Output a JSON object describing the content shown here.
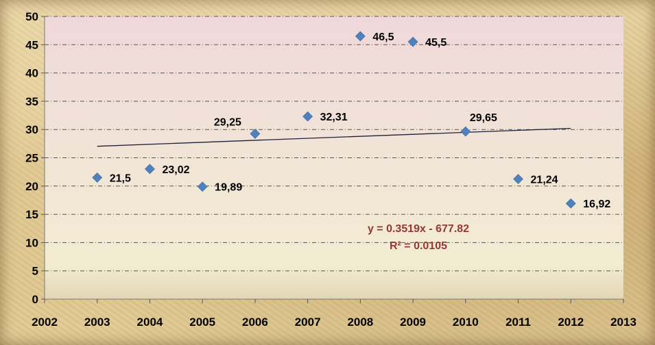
{
  "chart_data": {
    "type": "scatter",
    "x": [
      2003,
      2004,
      2005,
      2006,
      2007,
      2008,
      2009,
      2010,
      2011,
      2012
    ],
    "y": [
      21.5,
      23.02,
      19.89,
      29.25,
      32.31,
      46.5,
      45.5,
      29.65,
      21.24,
      16.92
    ],
    "data_labels": [
      "21,5",
      "23,02",
      "19,89",
      "29,25",
      "32,31",
      "46,5",
      "45,5",
      "29,65",
      "21,24",
      "16,92"
    ],
    "xlim": [
      2002,
      2013
    ],
    "ylim": [
      0,
      50
    ],
    "x_ticks": [
      "2002",
      "2003",
      "2004",
      "2005",
      "2006",
      "2007",
      "2008",
      "2009",
      "2010",
      "2011",
      "2012",
      "2013"
    ],
    "y_ticks": [
      "0",
      "5",
      "10",
      "15",
      "20",
      "25",
      "30",
      "35",
      "40",
      "45",
      "50"
    ],
    "grid": "horizontal dash-dot",
    "trendline": {
      "type": "linear",
      "slope": 0.3519,
      "intercept": -677.82,
      "x_range": [
        2003,
        2012
      ],
      "equation": "y = 0.3519x - 677.82",
      "r_squared": "R² = 0.0105"
    },
    "colors": {
      "marker": "#4f81bd",
      "trendline": "#1f1f3a",
      "equation_text": "#953735",
      "plot_top": "#f0d9da",
      "plot_bottom": "#f2ebd2"
    }
  }
}
